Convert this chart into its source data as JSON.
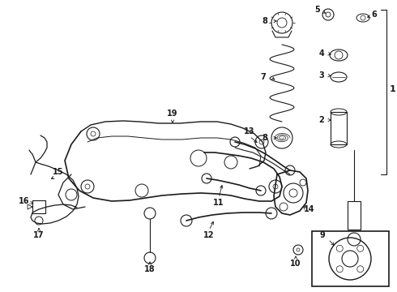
{
  "background": "#ffffff",
  "line_color": "#1a1a1a",
  "figsize": [
    4.9,
    3.6
  ],
  "dpi": 100,
  "xlim": [
    0,
    490
  ],
  "ylim": [
    0,
    360
  ]
}
